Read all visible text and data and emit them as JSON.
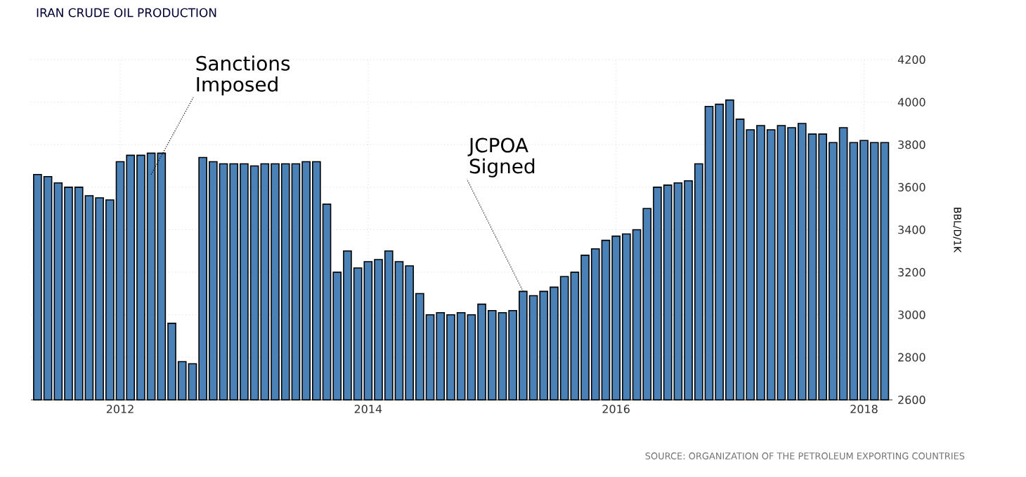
{
  "chart_data": {
    "type": "bar",
    "title": "IRAN CRUDE OIL PRODUCTION",
    "ylabel": "BBL/D/1K",
    "x": [
      "2011-05",
      "2011-06",
      "2011-07",
      "2011-08",
      "2011-09",
      "2011-10",
      "2011-11",
      "2011-12",
      "2012-01",
      "2012-02",
      "2012-03",
      "2012-04",
      "2012-05",
      "2012-06",
      "2012-07",
      "2012-08",
      "2012-09",
      "2012-10",
      "2012-11",
      "2012-12",
      "2013-01",
      "2013-02",
      "2013-03",
      "2013-04",
      "2013-05",
      "2013-06",
      "2013-07",
      "2013-08",
      "2013-09",
      "2013-10",
      "2013-11",
      "2013-12",
      "2014-01",
      "2014-02",
      "2014-03",
      "2014-04",
      "2014-05",
      "2014-06",
      "2014-07",
      "2014-08",
      "2014-09",
      "2014-10",
      "2014-11",
      "2014-12",
      "2015-01",
      "2015-02",
      "2015-03",
      "2015-04",
      "2015-05",
      "2015-06",
      "2015-07",
      "2015-08",
      "2015-09",
      "2015-10",
      "2015-11",
      "2015-12",
      "2016-01",
      "2016-02",
      "2016-03",
      "2016-04",
      "2016-05",
      "2016-06",
      "2016-07",
      "2016-08",
      "2016-09",
      "2016-10",
      "2016-11",
      "2016-12",
      "2017-01",
      "2017-02",
      "2017-03",
      "2017-04",
      "2017-05",
      "2017-06",
      "2017-07",
      "2017-08",
      "2017-09",
      "2017-10",
      "2017-11",
      "2017-12",
      "2018-01",
      "2018-02",
      "2018-03"
    ],
    "values": [
      3660,
      3650,
      3620,
      3600,
      3600,
      3560,
      3550,
      3540,
      3720,
      3750,
      3750,
      3760,
      3760,
      2960,
      2780,
      2770,
      3740,
      3720,
      3710,
      3710,
      3710,
      3700,
      3710,
      3710,
      3710,
      3710,
      3720,
      3720,
      3520,
      3200,
      3300,
      3220,
      3250,
      3260,
      3300,
      3250,
      3230,
      3100,
      3000,
      3010,
      3000,
      3010,
      3000,
      3050,
      3020,
      3010,
      3020,
      3110,
      3090,
      3110,
      3130,
      3180,
      3200,
      3280,
      3310,
      3350,
      3370,
      3380,
      3400,
      3500,
      3600,
      3610,
      3620,
      3630,
      3710,
      3980,
      3990,
      4010,
      3920,
      3870,
      3890,
      3870,
      3890,
      3880,
      3900,
      3850,
      3850,
      3810,
      3880,
      3810,
      3820,
      3810,
      3810
    ],
    "color": "#4a82b8",
    "xlim": [
      "2011-04-12",
      "2018-03-24"
    ],
    "ylim": [
      2600,
      4200
    ],
    "xticks": [
      "2012",
      "2014",
      "2016",
      "2018"
    ],
    "yticks": [
      2600,
      2800,
      3000,
      3200,
      3400,
      3600,
      3800,
      4000,
      4200
    ],
    "grid": true,
    "annotations": [
      {
        "text": "Sanctions Imposed",
        "x": "2012-04",
        "y": 3660
      },
      {
        "text": "JCPOA Signed",
        "x": "2015-04",
        "y": 3110
      },
      "SOURCE: ORGANIZATION OF THE PETROLEUM EXPORTING COUNTRIES"
    ]
  }
}
